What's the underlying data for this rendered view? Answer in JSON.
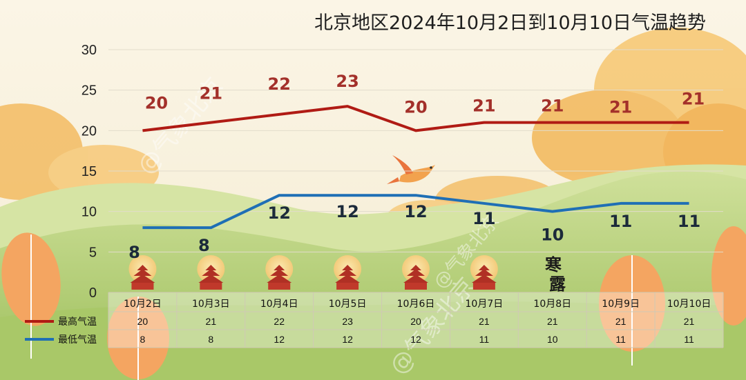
{
  "chart_data": {
    "type": "line",
    "title": "北京地区2024年10月2日到10月10日气温趋势",
    "categories": [
      "10月2日",
      "10月3日",
      "10月4日",
      "10月5日",
      "10月6日",
      "10月7日",
      "10月8日",
      "10月9日",
      "10月10日"
    ],
    "series": [
      {
        "name": "最高气温",
        "values": [
          20,
          21,
          22,
          23,
          20,
          21,
          21,
          21,
          21
        ],
        "color": "#b01b14"
      },
      {
        "name": "最低气温",
        "values": [
          8,
          8,
          12,
          12,
          12,
          11,
          10,
          11,
          11
        ],
        "color": "#1f6fb5"
      }
    ],
    "ylim": [
      0,
      30
    ],
    "yticks": [
      "0",
      "5",
      "10",
      "15",
      "20",
      "25",
      "30"
    ],
    "grid": true,
    "legend": "bottom-left, as data table row headers",
    "annotations": {
      "solar_term": "寒露",
      "solar_term_date": "10月8日"
    }
  },
  "watermarks": [
    "@气象北京",
    "@气象北京",
    "@气象北京"
  ],
  "icons": {
    "day_icon": "temple-of-heaven-icon",
    "bird": "bird-icon"
  },
  "colors": {
    "sky": "#f8f1df",
    "hills": "#b9d27a",
    "hills_dark": "#9dbf5c",
    "orange": "#f2a24e"
  }
}
